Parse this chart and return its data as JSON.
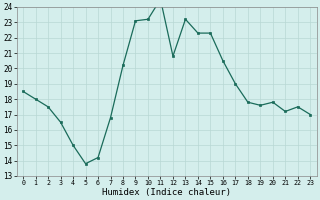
{
  "x": [
    0,
    1,
    2,
    3,
    4,
    5,
    6,
    7,
    8,
    9,
    10,
    11,
    12,
    13,
    14,
    15,
    16,
    17,
    18,
    19,
    20,
    21,
    22,
    23
  ],
  "y": [
    18.5,
    18.0,
    17.5,
    16.5,
    15.0,
    13.8,
    14.2,
    16.8,
    20.2,
    23.1,
    23.2,
    24.5,
    20.8,
    23.2,
    22.3,
    22.3,
    20.5,
    19.0,
    17.8,
    17.6,
    17.8,
    17.2,
    17.5,
    17.0
  ],
  "line_color": "#1a6b5a",
  "marker_color": "#1a6b5a",
  "bg_color": "#d4eeec",
  "grid_color": "#b8d8d5",
  "xlabel": "Humidex (Indice chaleur)",
  "ylim": [
    13,
    24
  ],
  "xlim": [
    -0.5,
    23.5
  ],
  "yticks": [
    13,
    14,
    15,
    16,
    17,
    18,
    19,
    20,
    21,
    22,
    23,
    24
  ],
  "xticks": [
    0,
    1,
    2,
    3,
    4,
    5,
    6,
    7,
    8,
    9,
    10,
    11,
    12,
    13,
    14,
    15,
    16,
    17,
    18,
    19,
    20,
    21,
    22,
    23
  ],
  "xtick_labels": [
    "0",
    "1",
    "2",
    "3",
    "4",
    "5",
    "6",
    "7",
    "8",
    "9",
    "10",
    "11",
    "12",
    "13",
    "14",
    "15",
    "16",
    "17",
    "18",
    "19",
    "20",
    "21",
    "22",
    "23"
  ],
  "xlabel_fontsize": 6.5,
  "ytick_fontsize": 5.5,
  "xtick_fontsize": 4.8
}
